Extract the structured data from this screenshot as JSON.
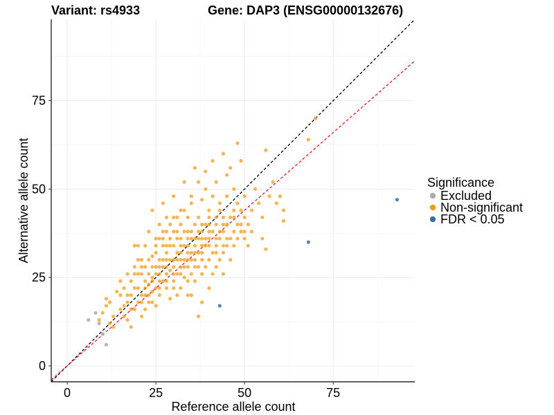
{
  "chart_data": {
    "type": "scatter",
    "title_left": "Variant: rs4933",
    "title_right": "Gene: DAP3 (ENSG00000132676)",
    "xlabel": "Reference allele count",
    "ylabel": "Alternative allele count",
    "xlim": [
      -4.5,
      98
    ],
    "ylim": [
      -4.5,
      98
    ],
    "x_ticks": [
      0,
      25,
      50,
      75
    ],
    "y_ticks": [
      0,
      25,
      50,
      75
    ],
    "x_tick_labels": [
      "0",
      "25",
      "50",
      "75"
    ],
    "y_tick_labels": [
      "0",
      "25",
      "50",
      "75"
    ],
    "grid": true,
    "legend": {
      "title": "Significance",
      "position": "right",
      "entries": [
        {
          "label": "Excluded",
          "color": "#aaaaaa"
        },
        {
          "label": "Non-significant",
          "color": "#f39c18"
        },
        {
          "label": "FDR < 0.05",
          "color": "#3c6e9e"
        }
      ]
    },
    "reference_lines": [
      {
        "name": "identity",
        "slope": 1.0,
        "intercept": 0,
        "color": "#000000",
        "dash": "dashed"
      },
      {
        "name": "fitted",
        "slope": 0.88,
        "intercept": 0,
        "color": "#e41a1c",
        "dash": "dashed"
      }
    ],
    "series": [
      {
        "name": "Excluded",
        "color": "#aaaaaa",
        "points": [
          [
            6,
            13
          ],
          [
            8,
            15
          ],
          [
            10,
            9
          ],
          [
            11,
            6
          ],
          [
            9,
            12
          ]
        ]
      },
      {
        "name": "FDR < 0.05",
        "color": "#3c6e9e",
        "points": [
          [
            43,
            17
          ],
          [
            68,
            35
          ],
          [
            93,
            47
          ]
        ]
      },
      {
        "name": "Non-significant",
        "color": "#f39c18",
        "points": [
          [
            9,
            13
          ],
          [
            10,
            15
          ],
          [
            11,
            17
          ],
          [
            11,
            19
          ],
          [
            12,
            18
          ],
          [
            12,
            12
          ],
          [
            13,
            11
          ],
          [
            13,
            14
          ],
          [
            14,
            21
          ],
          [
            15,
            16
          ],
          [
            15,
            20
          ],
          [
            16,
            17
          ],
          [
            16,
            14
          ],
          [
            17,
            13
          ],
          [
            17,
            18
          ],
          [
            18,
            20
          ],
          [
            18,
            24
          ],
          [
            18,
            11
          ],
          [
            19,
            22
          ],
          [
            19,
            26
          ],
          [
            19,
            34
          ],
          [
            20,
            18
          ],
          [
            20,
            30
          ],
          [
            20,
            34
          ],
          [
            21,
            14
          ],
          [
            21,
            26
          ],
          [
            21,
            20
          ],
          [
            22,
            28
          ],
          [
            22,
            16
          ],
          [
            22,
            34
          ],
          [
            23,
            23
          ],
          [
            23,
            18
          ],
          [
            23,
            38
          ],
          [
            24,
            25
          ],
          [
            24,
            31
          ],
          [
            24,
            21
          ],
          [
            24,
            44
          ],
          [
            25,
            28
          ],
          [
            25,
            22
          ],
          [
            25,
            34
          ],
          [
            25,
            17
          ],
          [
            26,
            26
          ],
          [
            26,
            40
          ],
          [
            26,
            20
          ],
          [
            27,
            30
          ],
          [
            27,
            24
          ],
          [
            27,
            36
          ],
          [
            27,
            46
          ],
          [
            28,
            22
          ],
          [
            28,
            32
          ],
          [
            28,
            28
          ],
          [
            28,
            42
          ],
          [
            29,
            27
          ],
          [
            29,
            34
          ],
          [
            29,
            19
          ],
          [
            30,
            30
          ],
          [
            30,
            38
          ],
          [
            30,
            24
          ],
          [
            30,
            48
          ],
          [
            31,
            32
          ],
          [
            31,
            26
          ],
          [
            31,
            36
          ],
          [
            31,
            20
          ],
          [
            32,
            34
          ],
          [
            32,
            28
          ],
          [
            32,
            44
          ],
          [
            32,
            22
          ],
          [
            33,
            30
          ],
          [
            33,
            38
          ],
          [
            33,
            25
          ],
          [
            33,
            52
          ],
          [
            34,
            36
          ],
          [
            34,
            28
          ],
          [
            34,
            42
          ],
          [
            34,
            20
          ],
          [
            35,
            32
          ],
          [
            35,
            26
          ],
          [
            35,
            46
          ],
          [
            35,
            38
          ],
          [
            36,
            34
          ],
          [
            36,
            30
          ],
          [
            36,
            24
          ],
          [
            36,
            56
          ],
          [
            37,
            36
          ],
          [
            37,
            28
          ],
          [
            37,
            42
          ],
          [
            37,
            14
          ],
          [
            38,
            38
          ],
          [
            38,
            32
          ],
          [
            38,
            47
          ],
          [
            38,
            26
          ],
          [
            39,
            34
          ],
          [
            39,
            40
          ],
          [
            39,
            28
          ],
          [
            39,
            55
          ],
          [
            40,
            36
          ],
          [
            40,
            30
          ],
          [
            40,
            44
          ],
          [
            40,
            22
          ],
          [
            41,
            38
          ],
          [
            41,
            32
          ],
          [
            41,
            48
          ],
          [
            41,
            26
          ],
          [
            42,
            34
          ],
          [
            42,
            40
          ],
          [
            42,
            28
          ],
          [
            42,
            52
          ],
          [
            43,
            36
          ],
          [
            43,
            30
          ],
          [
            43,
            44
          ],
          [
            44,
            38
          ],
          [
            44,
            32
          ],
          [
            44,
            60
          ],
          [
            44,
            26
          ],
          [
            45,
            40
          ],
          [
            45,
            34
          ],
          [
            45,
            48
          ],
          [
            46,
            36
          ],
          [
            46,
            30
          ],
          [
            46,
            56
          ],
          [
            47,
            42
          ],
          [
            47,
            38
          ],
          [
            47,
            34
          ],
          [
            48,
            40
          ],
          [
            48,
            63
          ],
          [
            48,
            36
          ],
          [
            49,
            44
          ],
          [
            49,
            38
          ],
          [
            49,
            58
          ],
          [
            50,
            42
          ],
          [
            50,
            36
          ],
          [
            50,
            48
          ],
          [
            51,
            40
          ],
          [
            51,
            34
          ],
          [
            52,
            44
          ],
          [
            52,
            38
          ],
          [
            53,
            50
          ],
          [
            54,
            46
          ],
          [
            55,
            42
          ],
          [
            55,
            36
          ],
          [
            56,
            33
          ],
          [
            56,
            61
          ],
          [
            57,
            48
          ],
          [
            58,
            52
          ],
          [
            59,
            46
          ],
          [
            60,
            48
          ],
          [
            61,
            44
          ],
          [
            61,
            41
          ],
          [
            68,
            64
          ],
          [
            70,
            70
          ],
          [
            26,
            36
          ],
          [
            28,
            38
          ],
          [
            30,
            42
          ],
          [
            32,
            40
          ],
          [
            34,
            34
          ],
          [
            36,
            40
          ],
          [
            38,
            36
          ],
          [
            40,
            40
          ],
          [
            42,
            42
          ],
          [
            44,
            42
          ],
          [
            26,
            30
          ],
          [
            28,
            26
          ],
          [
            30,
            28
          ],
          [
            32,
            30
          ],
          [
            34,
            32
          ],
          [
            36,
            28
          ],
          [
            38,
            30
          ],
          [
            40,
            34
          ],
          [
            42,
            32
          ],
          [
            44,
            34
          ],
          [
            22,
            22
          ],
          [
            24,
            24
          ],
          [
            26,
            24
          ],
          [
            28,
            30
          ],
          [
            30,
            34
          ],
          [
            32,
            32
          ],
          [
            34,
            30
          ],
          [
            36,
            32
          ],
          [
            38,
            34
          ],
          [
            40,
            38
          ],
          [
            21,
            28
          ],
          [
            23,
            30
          ],
          [
            25,
            32
          ],
          [
            27,
            34
          ],
          [
            29,
            36
          ],
          [
            31,
            38
          ],
          [
            33,
            34
          ],
          [
            35,
            36
          ],
          [
            37,
            38
          ],
          [
            39,
            36
          ],
          [
            20,
            22
          ],
          [
            22,
            24
          ],
          [
            24,
            28
          ],
          [
            26,
            28
          ],
          [
            28,
            34
          ],
          [
            30,
            26
          ],
          [
            32,
            36
          ],
          [
            34,
            38
          ],
          [
            36,
            36
          ],
          [
            38,
            40
          ],
          [
            19,
            16
          ],
          [
            21,
            18
          ],
          [
            23,
            20
          ],
          [
            25,
            26
          ],
          [
            27,
            28
          ],
          [
            29,
            30
          ],
          [
            31,
            30
          ],
          [
            33,
            28
          ],
          [
            35,
            30
          ],
          [
            37,
            32
          ],
          [
            17,
            20
          ],
          [
            18,
            16
          ],
          [
            20,
            26
          ],
          [
            22,
            20
          ],
          [
            24,
            18
          ],
          [
            26,
            22
          ],
          [
            28,
            24
          ],
          [
            30,
            22
          ],
          [
            32,
            26
          ],
          [
            34,
            24
          ],
          [
            43,
            38
          ],
          [
            45,
            36
          ],
          [
            47,
            44
          ],
          [
            49,
            40
          ],
          [
            46,
            42
          ],
          [
            44,
            40
          ],
          [
            42,
            36
          ],
          [
            40,
            42
          ],
          [
            48,
            46
          ],
          [
            50,
            38
          ],
          [
            16,
            22
          ],
          [
            15,
            24
          ],
          [
            17,
            26
          ],
          [
            19,
            28
          ],
          [
            21,
            30
          ],
          [
            23,
            26
          ],
          [
            25,
            36
          ],
          [
            27,
            38
          ],
          [
            29,
            40
          ],
          [
            31,
            42
          ],
          [
            33,
            44
          ],
          [
            35,
            48
          ],
          [
            37,
            52
          ],
          [
            39,
            50
          ],
          [
            41,
            58
          ],
          [
            43,
            46
          ],
          [
            45,
            54
          ],
          [
            47,
            50
          ],
          [
            35,
            20
          ],
          [
            38,
            18
          ]
        ]
      }
    ]
  }
}
